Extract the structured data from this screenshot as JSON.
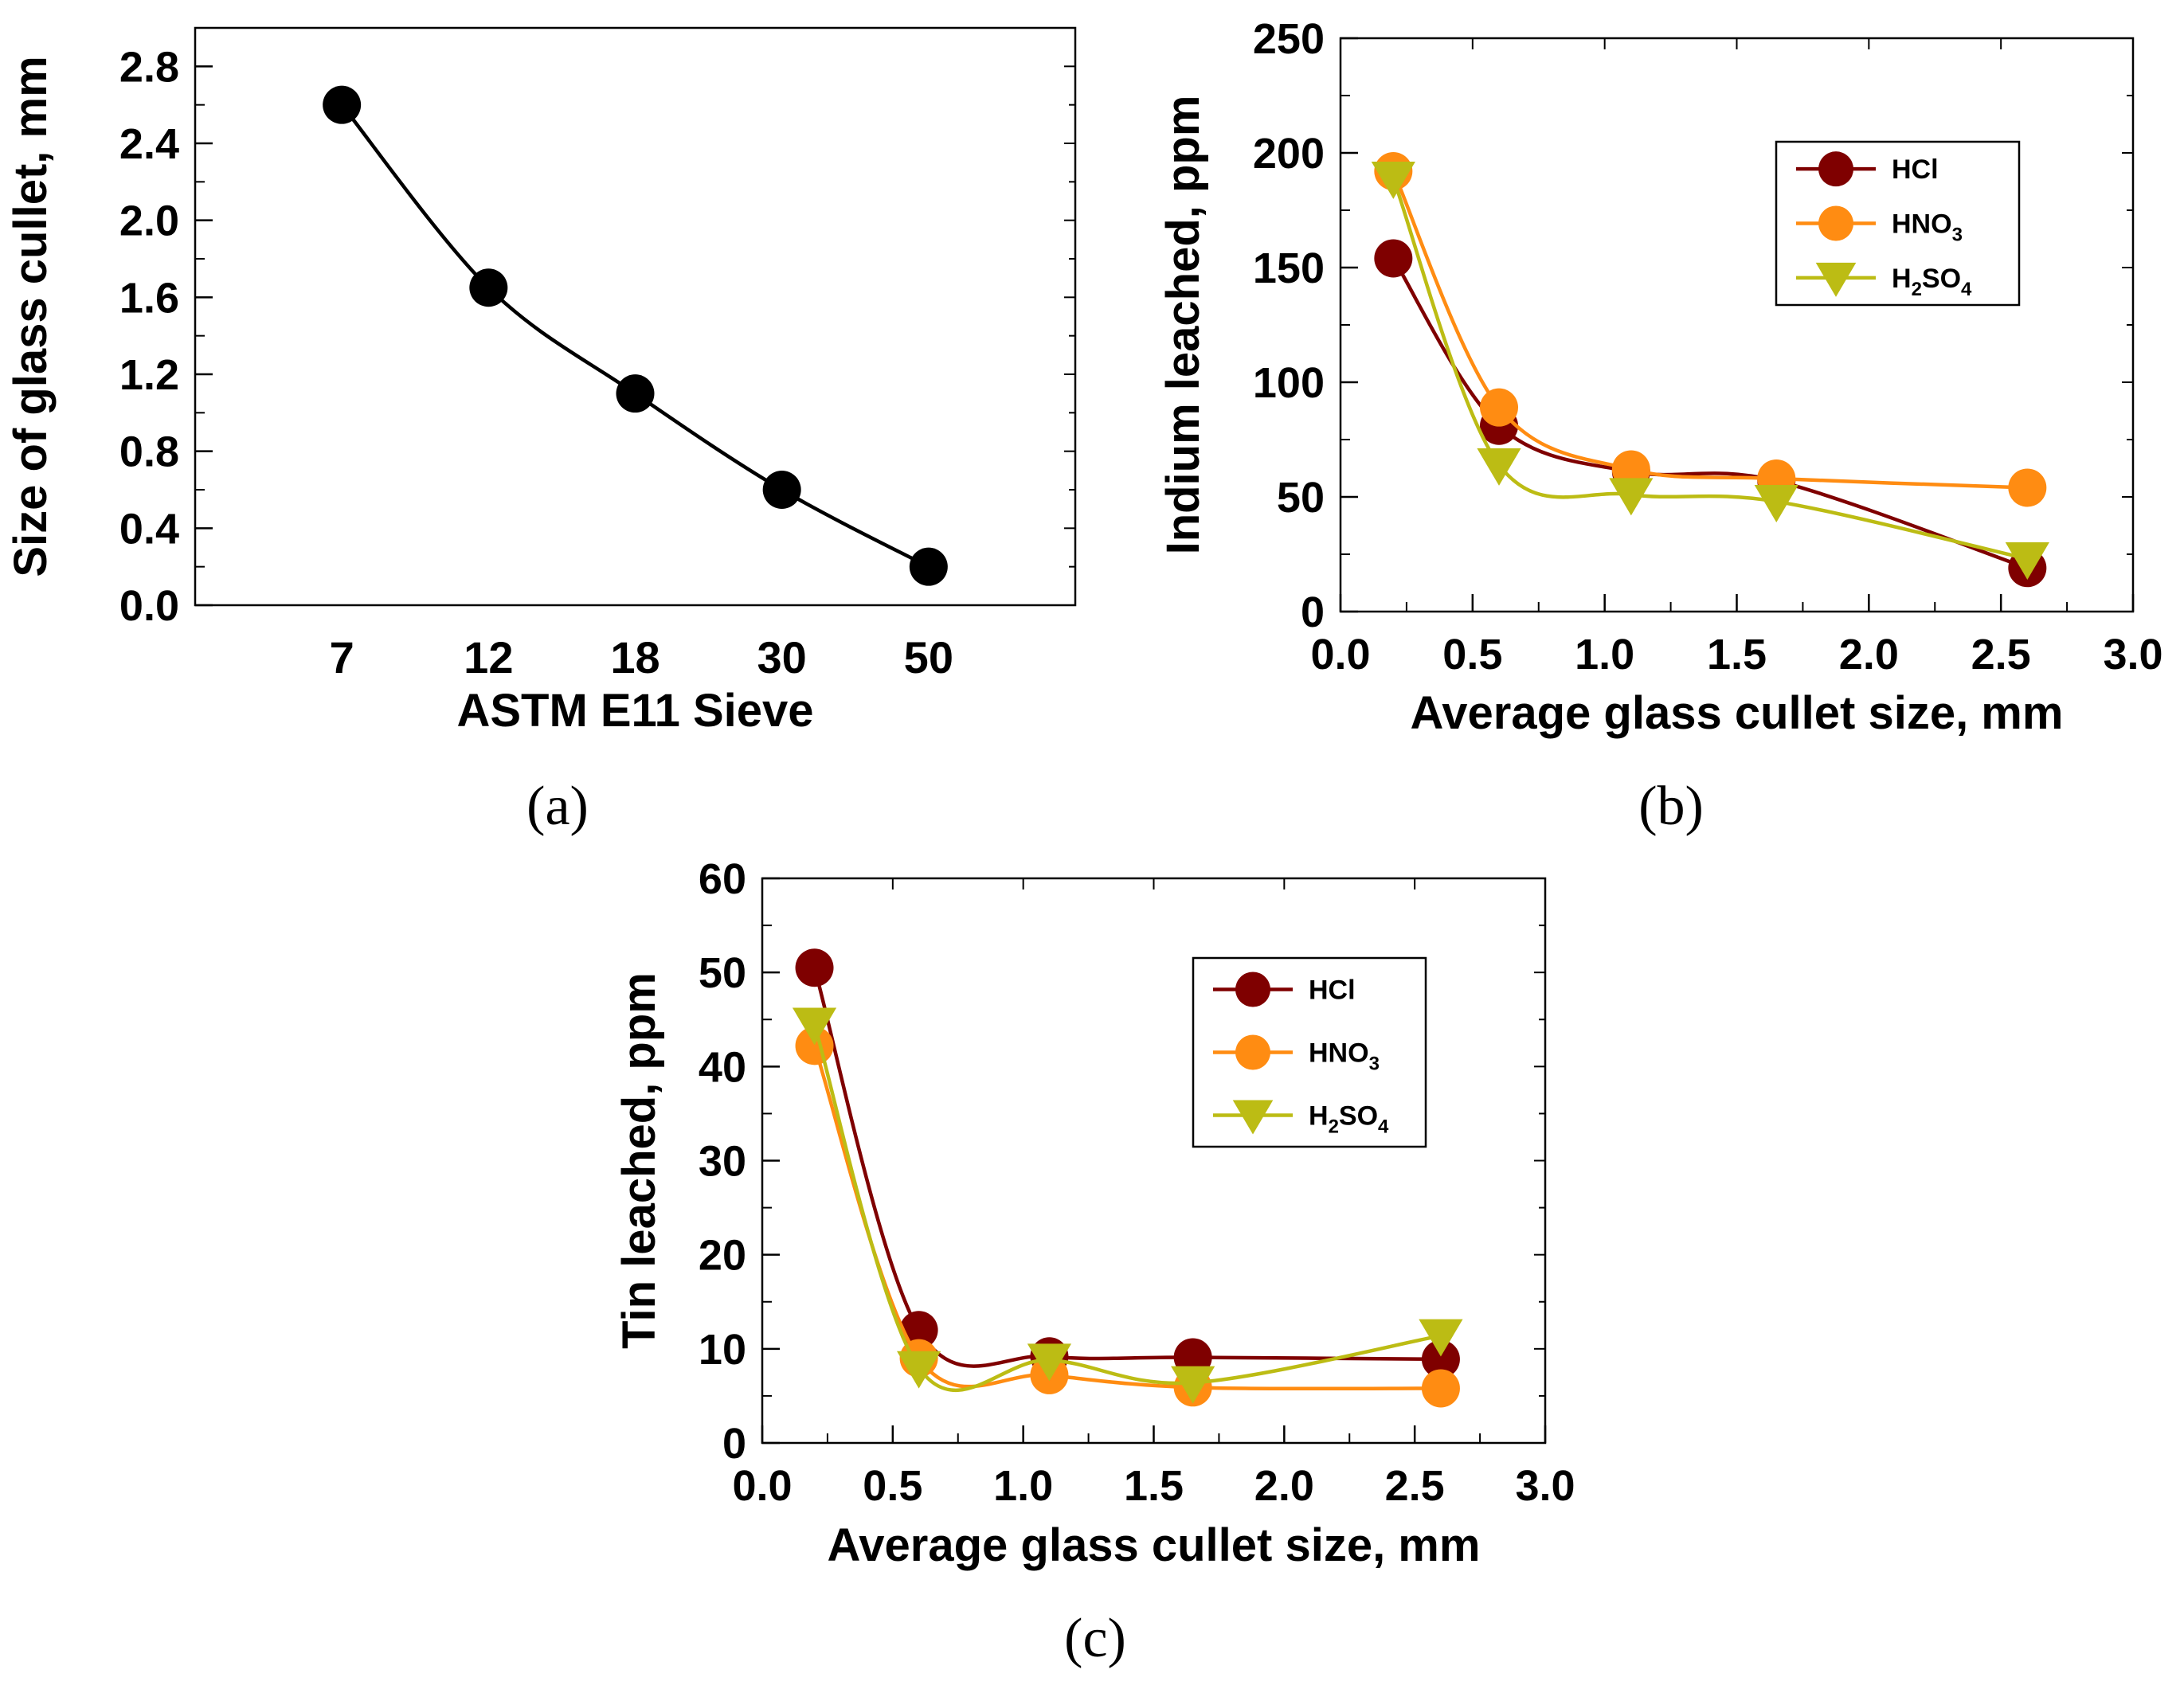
{
  "chart_data": [
    {
      "id": "a",
      "type": "line",
      "panel_label": "(a)",
      "xlabel": "ASTM E11 Sieve",
      "ylabel": "Size of glass cullet, mm",
      "categories": [
        "7",
        "12",
        "18",
        "30",
        "50"
      ],
      "xlim": [
        0,
        6
      ],
      "ylim": [
        0,
        3.0
      ],
      "yticks": [
        "0.0",
        "0.4",
        "0.8",
        "1.2",
        "1.6",
        "2.0",
        "2.4",
        "2.8"
      ],
      "series": [
        {
          "name": "size",
          "color": "#000000",
          "marker": "circle",
          "x": [
            1,
            2,
            3,
            4,
            5
          ],
          "values": [
            2.6,
            1.65,
            1.1,
            0.6,
            0.2
          ]
        }
      ]
    },
    {
      "id": "b",
      "type": "line",
      "panel_label": "(b)",
      "xlabel": "Average glass cullet size, mm",
      "ylabel": "Indium leached, ppm",
      "xlim": [
        0,
        3.0
      ],
      "ylim": [
        0,
        250
      ],
      "xticks": [
        "0.0",
        "0.5",
        "1.0",
        "1.5",
        "2.0",
        "2.5",
        "3.0"
      ],
      "yticks": [
        "0",
        "50",
        "100",
        "150",
        "200",
        "250"
      ],
      "legend": [
        "HCl",
        "HNO3",
        "H2SO4"
      ],
      "series": [
        {
          "name": "HCl",
          "color": "#7f0000",
          "marker": "circle",
          "x": [
            0.2,
            0.6,
            1.1,
            1.65,
            2.6
          ],
          "values": [
            154,
            81,
            61,
            57,
            19
          ]
        },
        {
          "name": "HNO3",
          "color": "#ff8c12",
          "marker": "circle",
          "x": [
            0.2,
            0.6,
            1.1,
            1.65,
            2.6
          ],
          "values": [
            192,
            89,
            62,
            58,
            54
          ]
        },
        {
          "name": "H2SO4",
          "color": "#bcbc14",
          "marker": "triangle",
          "x": [
            0.2,
            0.6,
            1.1,
            1.65,
            2.6
          ],
          "values": [
            189,
            64,
            51,
            48,
            23
          ]
        }
      ]
    },
    {
      "id": "c",
      "type": "line",
      "panel_label": "(c)",
      "xlabel": "Average glass cullet size, mm",
      "ylabel": "Tin leached, ppm",
      "xlim": [
        0,
        3.0
      ],
      "ylim": [
        0,
        60
      ],
      "xticks": [
        "0.0",
        "0.5",
        "1.0",
        "1.5",
        "2.0",
        "2.5",
        "3.0"
      ],
      "yticks": [
        "0",
        "10",
        "20",
        "30",
        "40",
        "50",
        "60"
      ],
      "legend": [
        "HCl",
        "HNO3",
        "H2SO4"
      ],
      "series": [
        {
          "name": "HCl",
          "color": "#7f0000",
          "marker": "circle",
          "x": [
            0.2,
            0.6,
            1.1,
            1.65,
            2.6
          ],
          "values": [
            50.5,
            12,
            9.2,
            9.1,
            8.9
          ]
        },
        {
          "name": "HNO3",
          "color": "#ff8c12",
          "marker": "circle",
          "x": [
            0.2,
            0.6,
            1.1,
            1.65,
            2.6
          ],
          "values": [
            42.2,
            9.0,
            7.2,
            5.9,
            5.8
          ]
        },
        {
          "name": "H2SO4",
          "color": "#bcbc14",
          "marker": "triangle",
          "x": [
            0.2,
            0.6,
            1.1,
            1.65,
            2.6
          ],
          "values": [
            44.5,
            8.0,
            8.8,
            6.4,
            11.4
          ]
        }
      ]
    }
  ]
}
